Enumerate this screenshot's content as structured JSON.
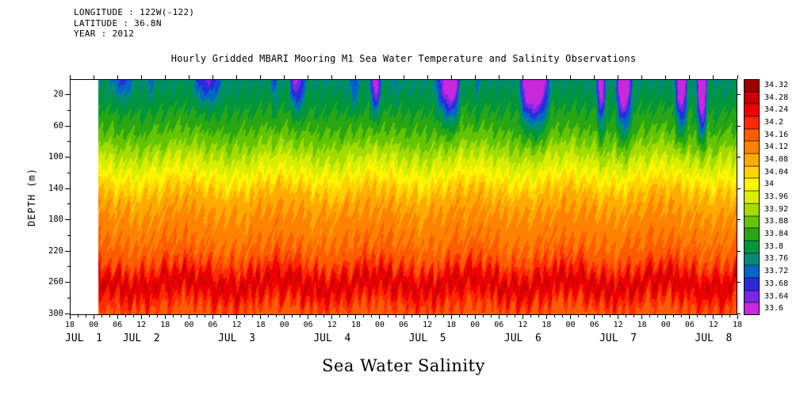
{
  "meta": {
    "longitude": "LONGITUDE : 122W(-122)",
    "latitude": "LATITUDE : 36.8N",
    "year": "YEAR : 2012"
  },
  "title": "Hourly Gridded MBARI Mooring M1 Sea Water Temperature and Salinity Observations",
  "footer_title": "Sea Water Salinity",
  "y_axis": {
    "label": "DEPTH (m)",
    "min": 0,
    "max": 302,
    "ticks": [
      20,
      60,
      100,
      140,
      180,
      220,
      260,
      300
    ]
  },
  "x_axis": {
    "hour_labels": [
      "18",
      "00",
      "06",
      "12",
      "18",
      "00",
      "06",
      "12",
      "18",
      "00",
      "06",
      "12",
      "18",
      "00",
      "06",
      "12",
      "18",
      "00",
      "06",
      "12",
      "18",
      "00",
      "06",
      "12",
      "18",
      "00",
      "06",
      "12",
      "18"
    ],
    "date_labels": [
      "JUL  1",
      "JUL  2",
      "JUL  3",
      "JUL  4",
      "JUL  5",
      "JUL  6",
      "JUL  7",
      "JUL  8"
    ]
  },
  "colorbar": {
    "labels_top_to_bottom": [
      "34.32",
      "34.28",
      "34.24",
      "34.2",
      "34.16",
      "34.12",
      "34.08",
      "34.04",
      "34",
      "33.96",
      "33.92",
      "33.88",
      "33.84",
      "33.8",
      "33.76",
      "33.72",
      "33.68",
      "33.64",
      "33.6"
    ],
    "colors_top_to_bottom": [
      "#A00000",
      "#C80000",
      "#EE0000",
      "#FF2A00",
      "#FF5C00",
      "#FF8200",
      "#FFAA00",
      "#FFD200",
      "#FFF500",
      "#D8EE00",
      "#A4DC00",
      "#64C400",
      "#28A614",
      "#00963C",
      "#008C78",
      "#0066C8",
      "#2B2BDC",
      "#7828E6",
      "#C828DC"
    ]
  },
  "chart_data": {
    "type": "heatmap",
    "title": "Hourly Gridded MBARI Mooring M1 Sea Water Temperature and Salinity Observations",
    "variable": "Sea Water Salinity",
    "location": {
      "longitude": "122W(-122)",
      "latitude": "36.8N",
      "year": "2012"
    },
    "x": {
      "start": "JUL 1 18:00",
      "end": "JUL 8 18:00",
      "total_hours": 168,
      "tick_interval_hours": 6,
      "data_gap_at_left_hours": 7
    },
    "y": {
      "label": "DEPTH (m)",
      "min": 0,
      "max": 302
    },
    "levels": [
      33.6,
      33.64,
      33.68,
      33.72,
      33.76,
      33.8,
      33.84,
      33.88,
      33.92,
      33.96,
      34,
      34.04,
      34.08,
      34.12,
      34.16,
      34.2,
      34.24,
      34.28,
      34.32
    ],
    "mean_profile": {
      "depth_m": [
        0,
        20,
        40,
        60,
        80,
        100,
        120,
        140,
        160,
        180,
        200,
        220,
        240,
        252,
        262,
        272,
        285,
        300
      ],
      "salinity": [
        33.79,
        33.81,
        33.84,
        33.87,
        33.91,
        33.96,
        34.01,
        34.07,
        34.11,
        34.13,
        34.15,
        34.17,
        34.21,
        34.26,
        34.29,
        34.26,
        34.22,
        34.18
      ]
    },
    "features": [
      "Fresh (33.6-33.76) blue/purple patches in upper 60 m, strongest July 5-8, with near-surface minima below 33.6 (magenta)",
      "Green layer (33.8-33.9) from surface to ~90 m early in the record",
      "Halocline of yellow-green to yellow (33.96-34.08) between ~100 m and ~140 m",
      "Orange (34.08-34.2) from ~140 m to ~240 m",
      "Salinity maximum red band (34.24-34.32) near 250-270 m, orange-red again toward 300 m",
      "High-frequency (2-3 h) internal-wave vertical striping throughout the section"
    ]
  }
}
